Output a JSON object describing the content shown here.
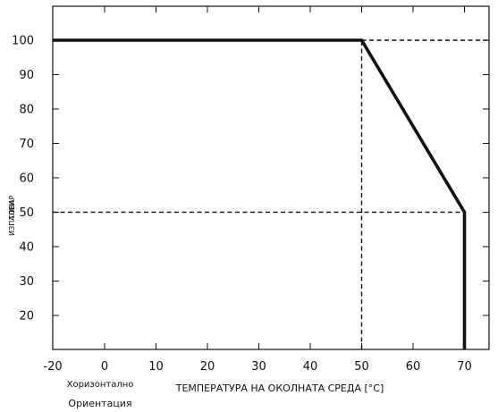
{
  "chart_data": {
    "type": "line",
    "title": "",
    "xlabel": "ТЕМПЕРАТУРА НА ОКОЛНАТА СРЕДА [°C]",
    "ylabel": "ТОВАР",
    "ylabel_overlay": "ИЗПАЛЕН",
    "orientation_top": "Хоризонтално",
    "orientation_bottom": "Ориентация",
    "xlim": [
      -20,
      70
    ],
    "ylim": [
      10,
      110
    ],
    "x_ticks": [
      -20,
      0,
      10,
      20,
      30,
      40,
      50,
      60,
      70
    ],
    "y_ticks": [
      20,
      30,
      40,
      50,
      60,
      70,
      80,
      90,
      100
    ],
    "grid": false,
    "series": [
      {
        "x": [
          -20,
          50,
          70,
          70
        ],
        "y": [
          100,
          100,
          50,
          10
        ]
      }
    ],
    "reference_lines": [
      {
        "x": [
          50,
          75
        ],
        "y": [
          100,
          100
        ]
      },
      {
        "x": [
          50,
          50
        ],
        "y": [
          10,
          100
        ]
      },
      {
        "x": [
          -20,
          70
        ],
        "y": [
          50,
          50
        ]
      }
    ]
  }
}
